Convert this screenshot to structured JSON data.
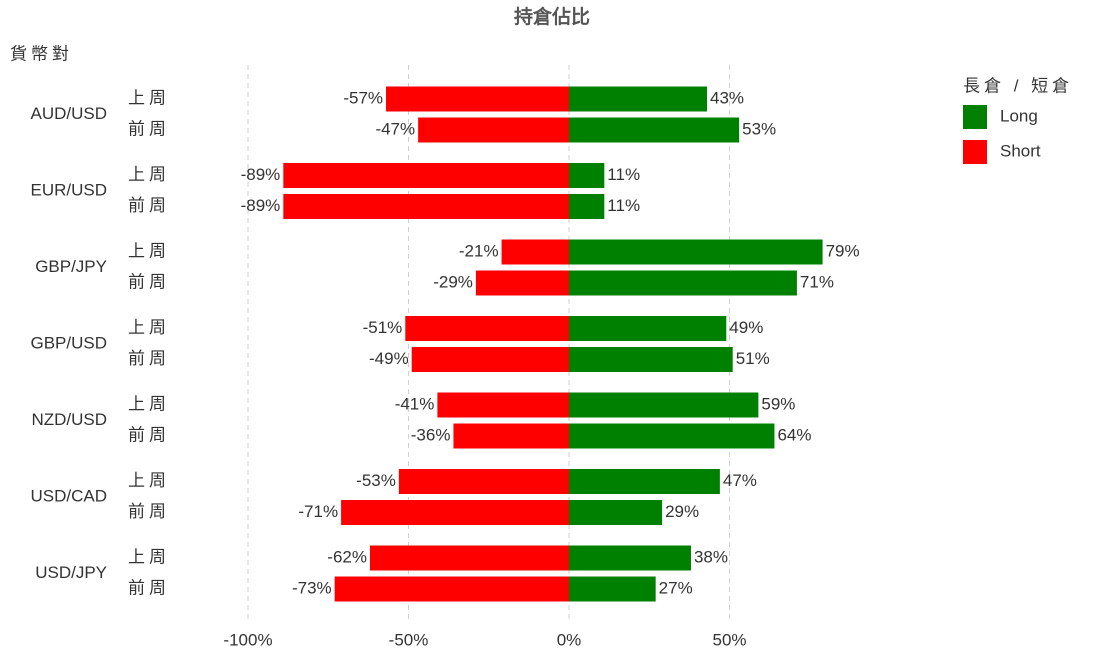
{
  "chart_data": {
    "type": "bar",
    "orientation": "horizontal",
    "title": "持倉佔比",
    "y_label": "貨幣對",
    "legend_title": "長倉 / 短倉",
    "legend_position": "right",
    "grid": true,
    "groups": [
      "AUD/USD",
      "EUR/USD",
      "GBP/JPY",
      "GBP/USD",
      "NZD/USD",
      "USD/CAD",
      "USD/JPY"
    ],
    "categories": [
      "上周",
      "前周",
      "上周",
      "前周",
      "上周",
      "前周",
      "上周",
      "前周",
      "上周",
      "前周",
      "上周",
      "前周",
      "上周",
      "前周"
    ],
    "series": [
      {
        "name": "Long",
        "color": "#008000",
        "values": [
          43,
          53,
          11,
          11,
          79,
          71,
          49,
          51,
          59,
          64,
          47,
          29,
          38,
          27
        ],
        "value_labels": [
          "43%",
          "53%",
          "11%",
          "11%",
          "79%",
          "71%",
          "49%",
          "51%",
          "59%",
          "64%",
          "47%",
          "29%",
          "38%",
          "27%"
        ]
      },
      {
        "name": "Short",
        "color": "#ff0000",
        "values": [
          -57,
          -47,
          -89,
          -89,
          -21,
          -29,
          -51,
          -49,
          -41,
          -36,
          -53,
          -71,
          -62,
          -73
        ],
        "value_labels": [
          "-57%",
          "-47%",
          "-89%",
          "-89%",
          "-21%",
          "-29%",
          "-51%",
          "-49%",
          "-41%",
          "-36%",
          "-53%",
          "-71%",
          "-62%",
          "-73%"
        ]
      }
    ],
    "xlim": [
      -100,
      100
    ],
    "xticks": [
      {
        "value": -100,
        "label": "-100%"
      },
      {
        "value": -50,
        "label": "-50%"
      },
      {
        "value": 0,
        "label": "0%"
      },
      {
        "value": 50,
        "label": "50%"
      }
    ]
  }
}
